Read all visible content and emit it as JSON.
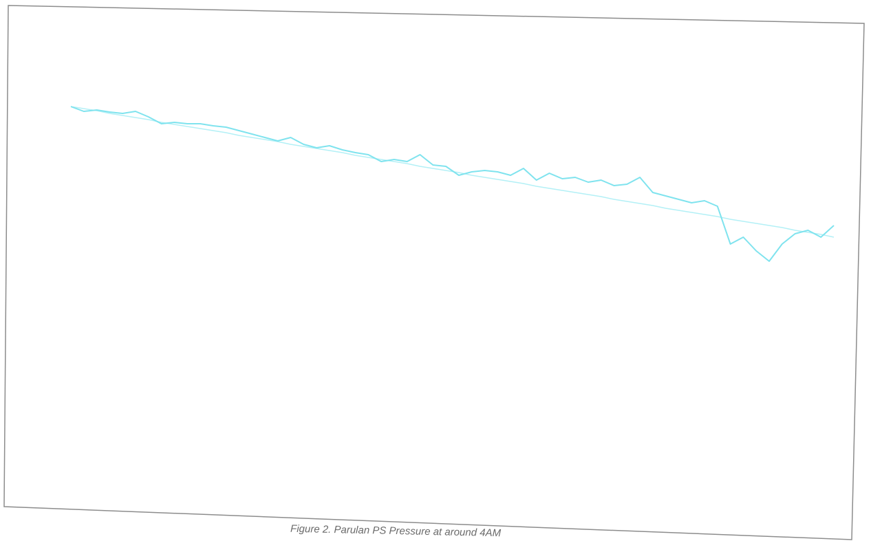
{
  "chart_data": {
    "type": "line",
    "caption": "Figure 2. Parulan PS Pressure at around 4AM",
    "categories": [
      null,
      null,
      null,
      null,
      null,
      null,
      null,
      null,
      null,
      null,
      null,
      null,
      null,
      null,
      null,
      null,
      null,
      null,
      null,
      null,
      null,
      null,
      null,
      null,
      null,
      null,
      null,
      null,
      null,
      null,
      null,
      null,
      null,
      null,
      null,
      null,
      null,
      null,
      null,
      null,
      null,
      null,
      null,
      null,
      null,
      null,
      null,
      null,
      null,
      null,
      null,
      null,
      null,
      null,
      null,
      null,
      null,
      null,
      null,
      null
    ],
    "series": [
      {
        "color": "#7fe3ee",
        "values": [
          585,
          578,
          580,
          577,
          575,
          578,
          570,
          560,
          562,
          560,
          560,
          557,
          555,
          550,
          545,
          540,
          535,
          540,
          530,
          525,
          528,
          522,
          518,
          515,
          505,
          508,
          505,
          515,
          500,
          498,
          485,
          490,
          492,
          490,
          485,
          495,
          478,
          488,
          480,
          482,
          475,
          478,
          470,
          472,
          482,
          460,
          455,
          450,
          445,
          448,
          440,
          385,
          395,
          375,
          360,
          385,
          400,
          405,
          395,
          412
        ]
      },
      {
        "color": "#b3f0f6",
        "values": [
          585,
          582,
          579,
          575,
          572,
          569,
          566,
          562,
          559,
          556,
          553,
          550,
          547,
          543,
          540,
          537,
          534,
          530,
          527,
          524,
          521,
          518,
          514,
          511,
          508,
          505,
          502,
          498,
          495,
          492,
          489,
          485,
          482,
          479,
          476,
          473,
          469,
          466,
          463,
          460,
          457,
          454,
          450,
          447,
          444,
          441,
          437,
          434,
          431,
          428,
          425,
          421,
          418,
          415,
          412,
          409,
          405,
          402,
          399,
          395
        ]
      }
    ],
    "ylim": [
      0,
      710
    ]
  }
}
